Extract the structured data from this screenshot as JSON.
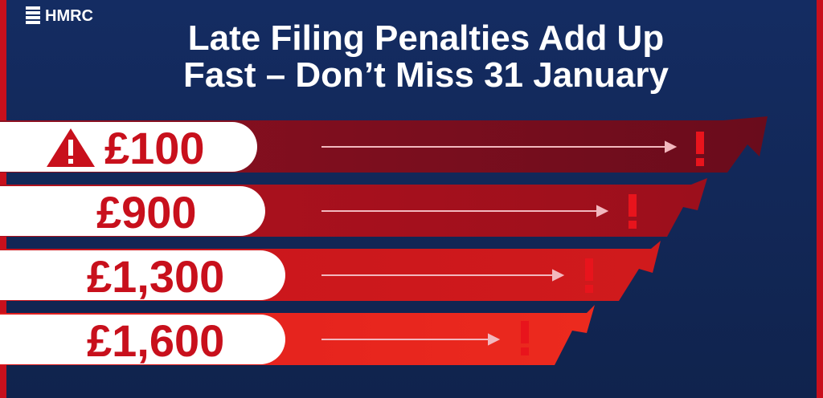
{
  "brand": "HMRC",
  "title_lines": [
    "Late Filing Penalties Add Up",
    "Fast – Don’t Miss 31 January"
  ],
  "penalties": [
    "£100",
    "£900",
    "£1,300",
    "£1,600"
  ]
}
